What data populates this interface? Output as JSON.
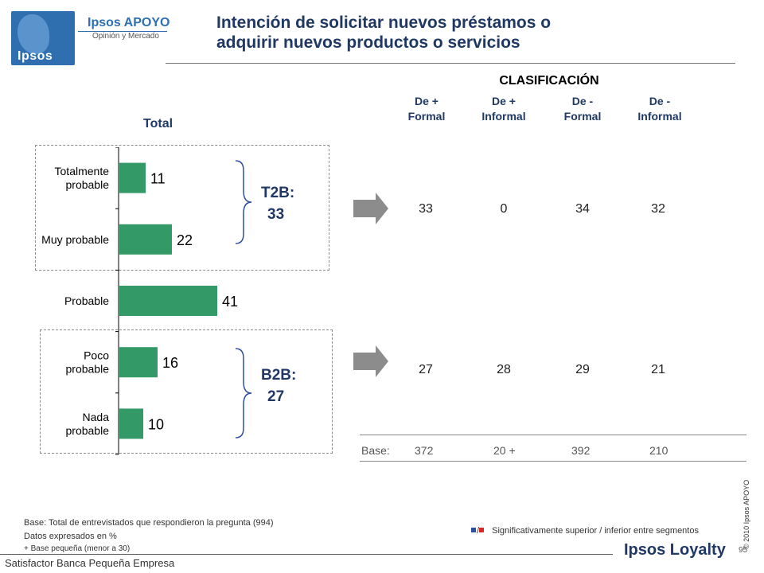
{
  "logo": {
    "brand": "Ipsos",
    "apoyo": "Ipsos APOYO",
    "apoyo_sub": "Opinión y Mercado"
  },
  "title_line1": "Intención de solicitar nuevos préstamos o",
  "title_line2": "adquirir nuevos productos o servicios",
  "clasificacion": "CLASIFICACIÓN",
  "columns": [
    {
      "l1": "De +",
      "l2": "Formal"
    },
    {
      "l1": "De +",
      "l2": "Informal"
    },
    {
      "l1": "De -",
      "l2": "Formal"
    },
    {
      "l1": "De  -",
      "l2": "Informal"
    }
  ],
  "total_label": "Total",
  "chart_data": {
    "type": "bar",
    "orientation": "horizontal",
    "categories": [
      [
        "Totalmente",
        "probable"
      ],
      [
        "Muy probable"
      ],
      [
        "Probable"
      ],
      [
        "Poco",
        "probable"
      ],
      [
        "Nada",
        "probable"
      ]
    ],
    "values": [
      11,
      22,
      41,
      16,
      10
    ],
    "data_labels": [
      "11",
      "22",
      "41",
      "16",
      "10"
    ],
    "xlim": [
      0,
      45
    ],
    "bar_color": "#339966",
    "grid": false
  },
  "t2b": {
    "label": "T2B:",
    "value": "33"
  },
  "b2b": {
    "label": "B2B:",
    "value": "27"
  },
  "row_t2b": [
    "33",
    "0",
    "34",
    "32"
  ],
  "row_b2b": [
    "27",
    "28",
    "29",
    "21"
  ],
  "base": {
    "label": "Base:",
    "values": [
      "372",
      "20 +",
      "392",
      "210"
    ]
  },
  "notes": {
    "base_note": "Base: Total de entrevistados que respondieron la pregunta (994)",
    "data_note": "Datos expresados en %",
    "small_note": "+ Base pequeña (menor a 30)"
  },
  "significance": {
    "sep": "/",
    "text": "Significativamente superior / inferior entre segmentos"
  },
  "colors": {
    "title": "#1f3864",
    "superior": "#2f4fa0",
    "inferior": "#d8282a",
    "arrow": "#8c8c8c"
  },
  "copyright": "© 2010 Ipsos APOYO",
  "page_number": "95",
  "loyalty": "Ipsos Loyalty",
  "footer": "Satisfactor Banca Pequeña Empresa"
}
